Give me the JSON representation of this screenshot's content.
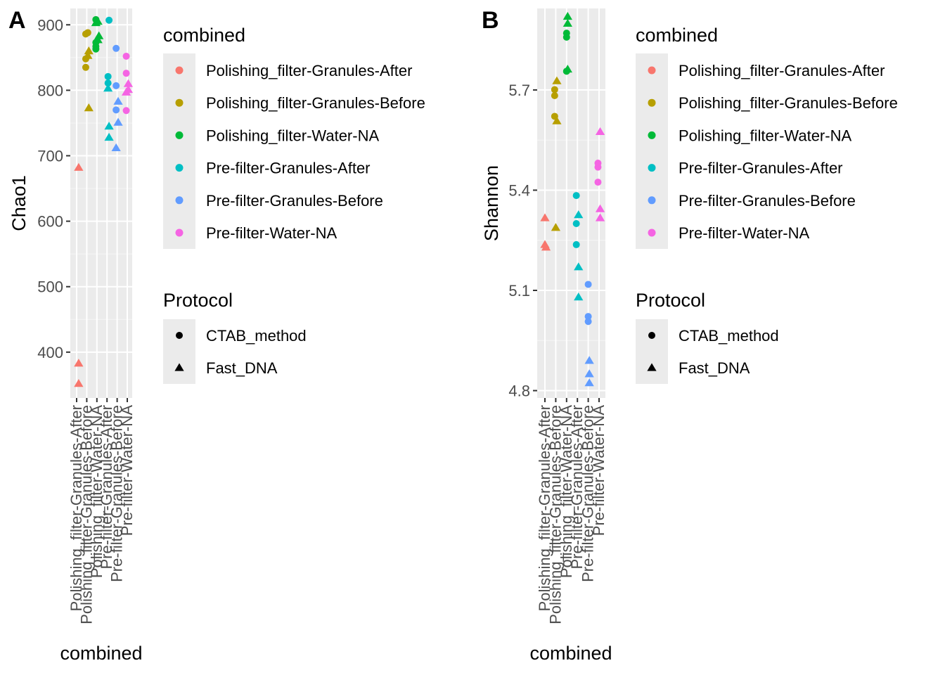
{
  "chart_data": [
    {
      "type": "scatter",
      "panel_tag": "A",
      "xlabel": "combined",
      "ylabel": "Chao1",
      "ylim": [
        330,
        925
      ],
      "y_ticks": [
        400,
        500,
        600,
        700,
        800,
        900
      ],
      "y_tick_labels": [
        "400",
        "500",
        "600",
        "700",
        "800",
        "900"
      ],
      "categories": [
        "Polishing_filter-Granules-After",
        "Polishing_filter-Granules-Before",
        "Polishing_filter-Water-NA",
        "Pre-filter-Granules-After",
        "Pre-filter-Granules-Before",
        "Pre-filter-Water-NA"
      ],
      "grid": true,
      "legend_position": "right",
      "points": [
        {
          "category": 0,
          "offset": 0.1,
          "y": 682,
          "shape": "triangle"
        },
        {
          "category": 0,
          "offset": 0.1,
          "y": 383,
          "shape": "triangle"
        },
        {
          "category": 0,
          "offset": 0.1,
          "y": 352,
          "shape": "triangle"
        },
        {
          "category": 1,
          "offset": -0.05,
          "y": 886,
          "shape": "circle"
        },
        {
          "category": 1,
          "offset": 0.05,
          "y": 888,
          "shape": "circle"
        },
        {
          "category": 1,
          "offset": -0.05,
          "y": 848,
          "shape": "circle"
        },
        {
          "category": 1,
          "offset": -0.05,
          "y": 835,
          "shape": "circle"
        },
        {
          "category": 1,
          "offset": 0.1,
          "y": 860,
          "shape": "triangle"
        },
        {
          "category": 1,
          "offset": 0.05,
          "y": 853,
          "shape": "triangle"
        },
        {
          "category": 1,
          "offset": 0.1,
          "y": 773,
          "shape": "triangle"
        },
        {
          "category": 2,
          "offset": -0.05,
          "y": 908,
          "shape": "circle"
        },
        {
          "category": 2,
          "offset": -0.05,
          "y": 873,
          "shape": "circle"
        },
        {
          "category": 2,
          "offset": -0.05,
          "y": 867,
          "shape": "circle"
        },
        {
          "category": 2,
          "offset": -0.05,
          "y": 863,
          "shape": "circle"
        },
        {
          "category": 2,
          "offset": 0.05,
          "y": 905,
          "shape": "triangle"
        },
        {
          "category": 2,
          "offset": -0.05,
          "y": 903,
          "shape": "triangle"
        },
        {
          "category": 2,
          "offset": 0.1,
          "y": 883,
          "shape": "triangle"
        },
        {
          "category": 2,
          "offset": 0.05,
          "y": 877,
          "shape": "triangle"
        },
        {
          "category": 3,
          "offset": 0.1,
          "y": 907,
          "shape": "circle"
        },
        {
          "category": 3,
          "offset": 0.05,
          "y": 821,
          "shape": "circle"
        },
        {
          "category": 3,
          "offset": 0.05,
          "y": 811,
          "shape": "circle"
        },
        {
          "category": 3,
          "offset": 0.05,
          "y": 803,
          "shape": "triangle"
        },
        {
          "category": 3,
          "offset": 0.1,
          "y": 745,
          "shape": "triangle"
        },
        {
          "category": 3,
          "offset": 0.1,
          "y": 728,
          "shape": "triangle"
        },
        {
          "category": 4,
          "offset": -0.05,
          "y": 864,
          "shape": "circle"
        },
        {
          "category": 4,
          "offset": -0.05,
          "y": 807,
          "shape": "circle"
        },
        {
          "category": 4,
          "offset": -0.05,
          "y": 770,
          "shape": "circle"
        },
        {
          "category": 4,
          "offset": 0.05,
          "y": 783,
          "shape": "triangle"
        },
        {
          "category": 4,
          "offset": 0.05,
          "y": 751,
          "shape": "triangle"
        },
        {
          "category": 4,
          "offset": -0.05,
          "y": 712,
          "shape": "triangle"
        },
        {
          "category": 5,
          "offset": -0.05,
          "y": 852,
          "shape": "circle"
        },
        {
          "category": 5,
          "offset": -0.05,
          "y": 826,
          "shape": "circle"
        },
        {
          "category": 5,
          "offset": -0.05,
          "y": 769,
          "shape": "circle"
        },
        {
          "category": 5,
          "offset": 0.05,
          "y": 810,
          "shape": "triangle"
        },
        {
          "category": 5,
          "offset": 0.05,
          "y": 801,
          "shape": "triangle"
        },
        {
          "category": 5,
          "offset": -0.05,
          "y": 797,
          "shape": "triangle"
        }
      ]
    },
    {
      "type": "scatter",
      "panel_tag": "B",
      "xlabel": "combined",
      "ylabel": "Shannon",
      "ylim": [
        4.778,
        5.944
      ],
      "y_ticks": [
        4.8,
        5.1,
        5.4,
        5.7
      ],
      "y_tick_labels": [
        "4.8",
        "5.1",
        "5.4",
        "5.7"
      ],
      "categories": [
        "Polishing_filter-Granules-After",
        "Polishing_filter-Granules-Before",
        "Polishing_filter-Water-NA",
        "Pre-filter-Granules-After",
        "Pre-filter-Granules-Before",
        "Pre-filter-Water-NA"
      ],
      "grid": true,
      "legend_position": "right",
      "points": [
        {
          "category": 0,
          "offset": 0.0,
          "y": 5.317,
          "shape": "triangle"
        },
        {
          "category": 0,
          "offset": 0.0,
          "y": 5.237,
          "shape": "triangle"
        },
        {
          "category": 0,
          "offset": 0.05,
          "y": 5.229,
          "shape": "triangle"
        },
        {
          "category": 1,
          "offset": -0.05,
          "y": 5.701,
          "shape": "circle"
        },
        {
          "category": 1,
          "offset": -0.05,
          "y": 5.683,
          "shape": "circle"
        },
        {
          "category": 1,
          "offset": -0.05,
          "y": 5.621,
          "shape": "circle"
        },
        {
          "category": 1,
          "offset": 0.05,
          "y": 5.727,
          "shape": "triangle"
        },
        {
          "category": 1,
          "offset": 0.05,
          "y": 5.607,
          "shape": "triangle"
        },
        {
          "category": 1,
          "offset": 0.0,
          "y": 5.288,
          "shape": "triangle"
        },
        {
          "category": 2,
          "offset": 0.0,
          "y": 5.87,
          "shape": "circle"
        },
        {
          "category": 2,
          "offset": 0.0,
          "y": 5.858,
          "shape": "circle"
        },
        {
          "category": 2,
          "offset": 0.0,
          "y": 5.756,
          "shape": "circle"
        },
        {
          "category": 2,
          "offset": 0.05,
          "y": 5.92,
          "shape": "triangle"
        },
        {
          "category": 2,
          "offset": 0.05,
          "y": 5.899,
          "shape": "triangle"
        },
        {
          "category": 2,
          "offset": 0.05,
          "y": 5.762,
          "shape": "triangle"
        },
        {
          "category": 3,
          "offset": -0.05,
          "y": 5.384,
          "shape": "circle"
        },
        {
          "category": 3,
          "offset": -0.05,
          "y": 5.3,
          "shape": "circle"
        },
        {
          "category": 3,
          "offset": -0.05,
          "y": 5.237,
          "shape": "circle"
        },
        {
          "category": 3,
          "offset": 0.05,
          "y": 5.326,
          "shape": "triangle"
        },
        {
          "category": 3,
          "offset": 0.05,
          "y": 5.17,
          "shape": "triangle"
        },
        {
          "category": 3,
          "offset": 0.05,
          "y": 5.08,
          "shape": "triangle"
        },
        {
          "category": 4,
          "offset": 0.0,
          "y": 5.118,
          "shape": "circle"
        },
        {
          "category": 4,
          "offset": 0.0,
          "y": 5.022,
          "shape": "circle"
        },
        {
          "category": 4,
          "offset": 0.0,
          "y": 5.007,
          "shape": "circle"
        },
        {
          "category": 4,
          "offset": 0.05,
          "y": 4.89,
          "shape": "triangle"
        },
        {
          "category": 4,
          "offset": 0.05,
          "y": 4.85,
          "shape": "triangle"
        },
        {
          "category": 4,
          "offset": 0.05,
          "y": 4.823,
          "shape": "triangle"
        },
        {
          "category": 5,
          "offset": -0.05,
          "y": 5.481,
          "shape": "circle"
        },
        {
          "category": 5,
          "offset": -0.05,
          "y": 5.469,
          "shape": "circle"
        },
        {
          "category": 5,
          "offset": -0.05,
          "y": 5.424,
          "shape": "circle"
        },
        {
          "category": 5,
          "offset": 0.05,
          "y": 5.575,
          "shape": "triangle"
        },
        {
          "category": 5,
          "offset": 0.05,
          "y": 5.344,
          "shape": "triangle"
        },
        {
          "category": 5,
          "offset": 0.05,
          "y": 5.317,
          "shape": "triangle"
        }
      ]
    }
  ],
  "legend": {
    "color_title": "combined",
    "color_entries": [
      {
        "label": "Polishing_filter-Granules-After",
        "color": "#F8766D"
      },
      {
        "label": "Polishing_filter-Granules-Before",
        "color": "#B79F00"
      },
      {
        "label": "Polishing_filter-Water-NA",
        "color": "#00BA38"
      },
      {
        "label": "Pre-filter-Granules-After",
        "color": "#00BFC4"
      },
      {
        "label": "Pre-filter-Granules-Before",
        "color": "#619CFF"
      },
      {
        "label": "Pre-filter-Water-NA",
        "color": "#F564E3"
      }
    ],
    "shape_title": "Protocol",
    "shape_entries": [
      {
        "label": "CTAB_method",
        "shape": "circle"
      },
      {
        "label": "Fast_DNA",
        "shape": "triangle"
      }
    ]
  },
  "colors": {
    "panel_background": "#EBEBEB",
    "grid_major": "#FFFFFF",
    "legend_key_background": "#EBEBEB",
    "tick_text": "#4D4D4D"
  }
}
